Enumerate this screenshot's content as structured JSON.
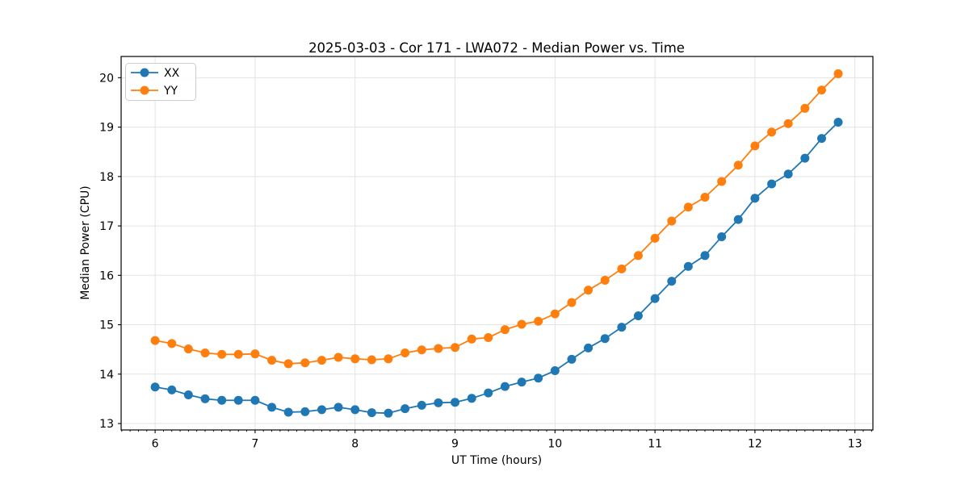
{
  "chart_data": {
    "type": "line",
    "title": "2025-03-03 - Cor 171 - LWA072 - Median Power vs. Time",
    "xlabel": "UT Time (hours)",
    "ylabel": "Median Power (CPU)",
    "xlim": [
      5.66,
      13.18
    ],
    "ylim": [
      12.87,
      20.43
    ],
    "xticks": [
      6,
      7,
      8,
      9,
      10,
      11,
      12,
      13
    ],
    "yticks": [
      13,
      14,
      15,
      16,
      17,
      18,
      19,
      20
    ],
    "x_minor_tick_step": 0.08333,
    "grid": true,
    "legend_position": "upper-left",
    "x": [
      6.0,
      6.167,
      6.333,
      6.5,
      6.667,
      6.833,
      7.0,
      7.167,
      7.333,
      7.5,
      7.667,
      7.833,
      8.0,
      8.167,
      8.333,
      8.5,
      8.667,
      8.833,
      9.0,
      9.167,
      9.333,
      9.5,
      9.667,
      9.833,
      10.0,
      10.167,
      10.333,
      10.5,
      10.667,
      10.833,
      11.0,
      11.167,
      11.333,
      11.5,
      11.667,
      11.833,
      12.0,
      12.167,
      12.333,
      12.5,
      12.667,
      12.833
    ],
    "series": [
      {
        "name": "XX",
        "color": "#1f77b4",
        "values": [
          13.74,
          13.68,
          13.58,
          13.5,
          13.47,
          13.47,
          13.47,
          13.33,
          13.23,
          13.24,
          13.28,
          13.33,
          13.28,
          13.22,
          13.21,
          13.3,
          13.37,
          13.42,
          13.43,
          13.51,
          13.62,
          13.75,
          13.84,
          13.92,
          14.07,
          14.3,
          14.53,
          14.72,
          14.95,
          15.18,
          15.53,
          15.88,
          16.18,
          16.4,
          16.78,
          17.13,
          17.56,
          17.85,
          18.05,
          18.37,
          18.77,
          19.1
        ]
      },
      {
        "name": "YY",
        "color": "#ff7f0e",
        "values": [
          14.68,
          14.62,
          14.51,
          14.43,
          14.4,
          14.4,
          14.41,
          14.28,
          14.21,
          14.23,
          14.28,
          14.34,
          14.31,
          14.29,
          14.31,
          14.43,
          14.49,
          14.52,
          14.54,
          14.71,
          14.74,
          14.9,
          15.01,
          15.07,
          15.22,
          15.45,
          15.7,
          15.9,
          16.13,
          16.4,
          16.75,
          17.1,
          17.38,
          17.58,
          17.9,
          18.23,
          18.62,
          18.9,
          19.07,
          19.38,
          19.75,
          20.08
        ]
      }
    ]
  },
  "colors": {
    "grid": "#e3e3e3",
    "spine": "#000000",
    "tick": "#000000",
    "background": "#ffffff",
    "legend_border": "#cccccc"
  }
}
